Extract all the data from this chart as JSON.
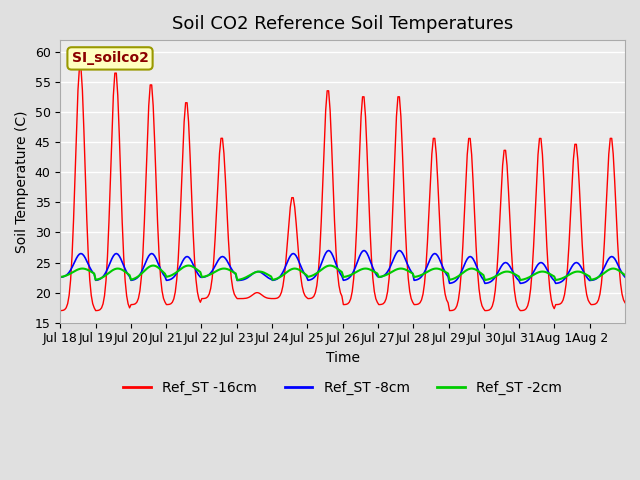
{
  "title": "Soil CO2 Reference Soil Temperatures",
  "xlabel": "Time",
  "ylabel": "Soil Temperature (C)",
  "ylim": [
    15,
    62
  ],
  "yticks": [
    15,
    20,
    25,
    30,
    35,
    40,
    45,
    50,
    55,
    60
  ],
  "legend_label": "SI_soilco2",
  "series_labels": [
    "Ref_ST -16cm",
    "Ref_ST -8cm",
    "Ref_ST -2cm"
  ],
  "series_colors": [
    "#FF0000",
    "#0000FF",
    "#00CC00"
  ],
  "fig_bg_color": "#E0E0E0",
  "plot_bg_color": "#EBEBEB",
  "title_fontsize": 13,
  "axis_fontsize": 10,
  "tick_fontsize": 9,
  "legend_fontsize": 10,
  "xtick_labels": [
    "Jul 18",
    "Jul 19",
    "Jul 20",
    "Jul 21",
    "Jul 22",
    "Jul 23",
    "Jul 24",
    "Jul 25",
    "Jul 26",
    "Jul 27",
    "Jul 28",
    "Jul 29",
    "Jul 30",
    "Jul 31",
    "Aug 1",
    "Aug 2"
  ],
  "n_days": 16,
  "red_day_peaks": [
    58,
    57,
    55,
    52,
    46,
    20,
    36,
    54,
    53,
    53,
    46,
    46,
    44,
    46,
    45,
    46
  ],
  "red_day_mins": [
    17,
    17,
    18,
    18,
    19,
    19,
    19,
    19,
    18,
    18,
    18,
    17,
    17,
    17,
    18,
    18
  ],
  "blue_day_peaks": [
    26.5,
    26.5,
    26.5,
    26,
    26,
    23.5,
    26.5,
    27,
    27,
    27,
    26.5,
    26,
    25,
    25,
    25,
    26
  ],
  "blue_day_mins": [
    22.5,
    22,
    22,
    22,
    22.5,
    22,
    22,
    22,
    22,
    22.5,
    22,
    21.5,
    21.5,
    21.5,
    21.5,
    22
  ],
  "green_day_peaks": [
    24,
    24,
    24.5,
    24.5,
    24,
    23.5,
    24,
    24.5,
    24,
    24,
    24,
    24,
    23.5,
    23.5,
    23.5,
    24
  ],
  "green_day_mins": [
    22.5,
    22,
    22,
    22.5,
    22.5,
    22,
    22,
    22.5,
    22.5,
    22.5,
    22.5,
    22,
    22,
    22,
    22,
    22
  ]
}
